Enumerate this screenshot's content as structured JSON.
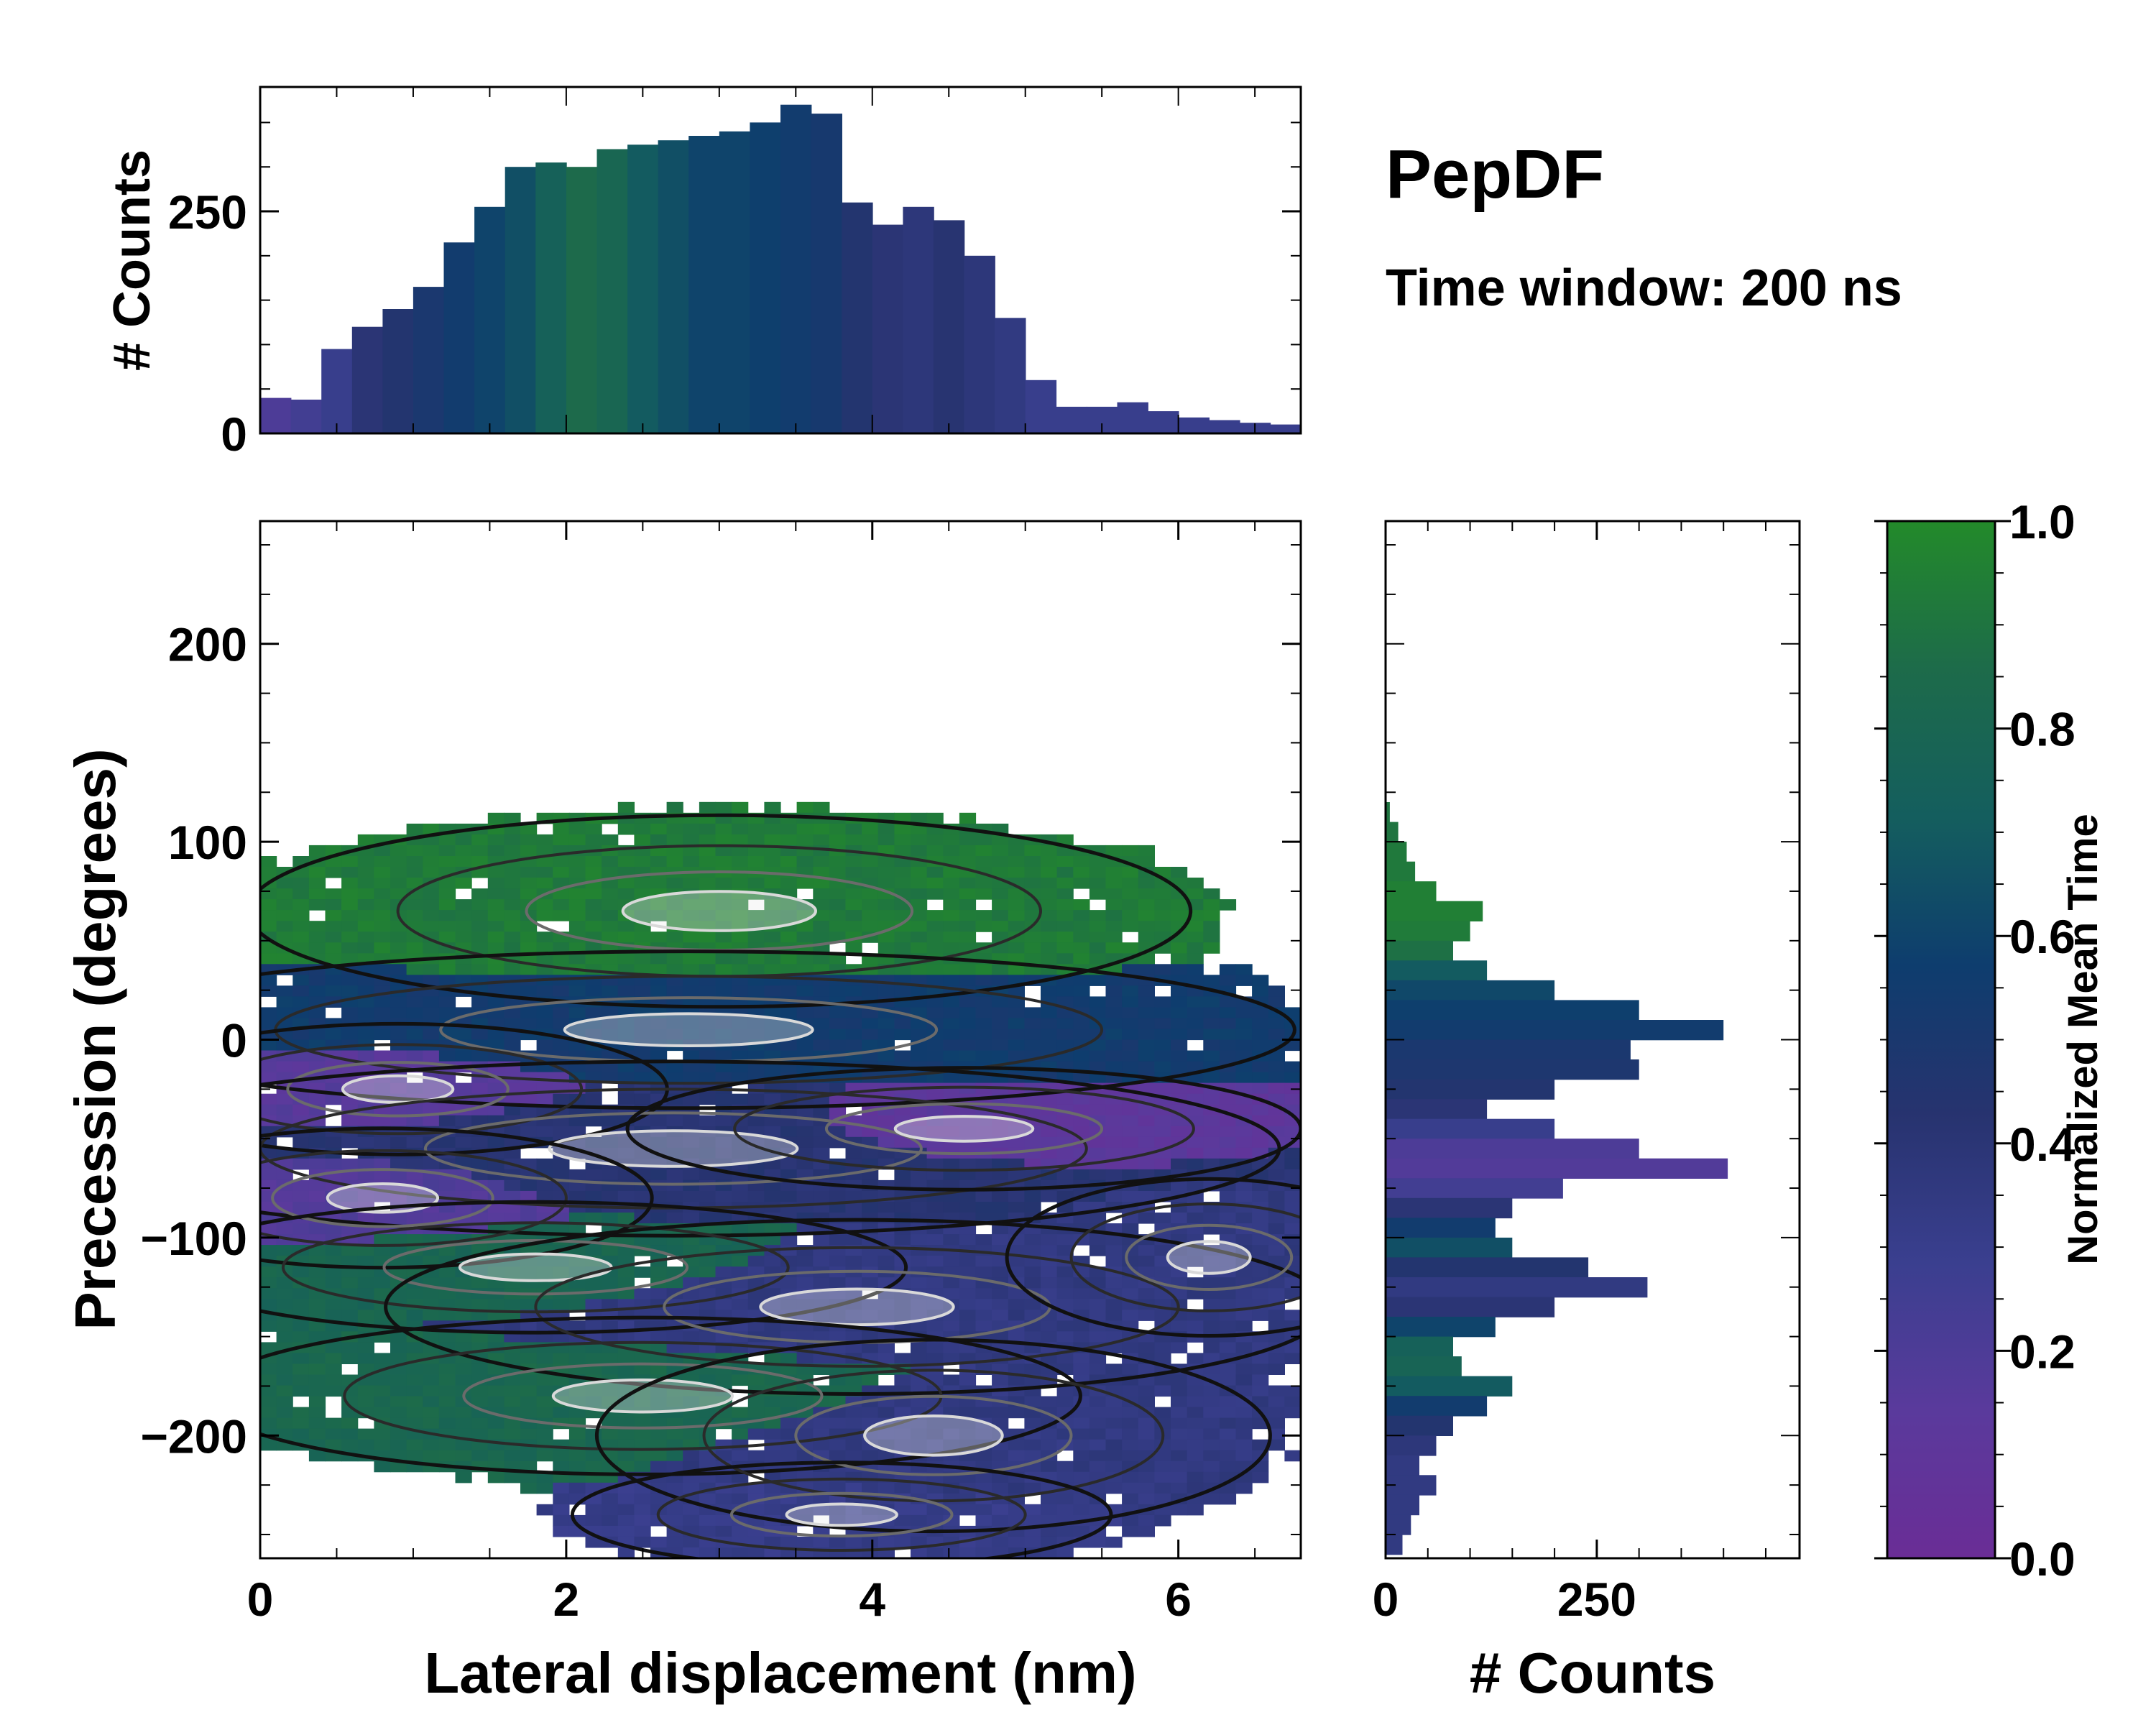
{
  "chart_data": {
    "type": "joint-histogram",
    "title": "PepDF",
    "subtitle": "Time window: 200 ns",
    "colorscale": [
      "#6a2d96",
      "#5a3a9c",
      "#3a3f8f",
      "#27336f",
      "#0e3d6e",
      "#145e5e",
      "#1d6b4a",
      "#238a2a"
    ],
    "main": {
      "xlabel": "Lateral displacement (nm)",
      "ylabel": "Precession (degrees)",
      "xlim": [
        0,
        6.8
      ],
      "ylim": [
        -262,
        262
      ],
      "xticks": [
        0,
        2,
        4,
        6
      ],
      "yticks": [
        200,
        100,
        0,
        -100,
        -200
      ],
      "xtick_labels": [
        "0",
        "2",
        "4",
        "6"
      ],
      "ytick_labels": [
        "200",
        "100",
        "0",
        "−100",
        "−200"
      ],
      "clusters": [
        {
          "name": "upper-green",
          "cx": 3.0,
          "cy": 65,
          "sx": 1.4,
          "sy": 22,
          "time": 0.93
        },
        {
          "name": "upper-blue",
          "cx": 2.8,
          "cy": 5,
          "sx": 1.8,
          "sy": 18,
          "time": 0.55
        },
        {
          "name": "left-purple",
          "cx": 0.9,
          "cy": -25,
          "sx": 0.8,
          "sy": 15,
          "time": 0.15
        },
        {
          "name": "mid-blue",
          "cx": 2.7,
          "cy": -55,
          "sx": 1.8,
          "sy": 20,
          "time": 0.42
        },
        {
          "name": "mid-purple",
          "cx": 4.6,
          "cy": -45,
          "sx": 1.0,
          "sy": 14,
          "time": 0.12
        },
        {
          "name": "left-purple-2",
          "cx": 0.8,
          "cy": -80,
          "sx": 0.8,
          "sy": 16,
          "time": 0.18
        },
        {
          "name": "lower-green",
          "cx": 1.8,
          "cy": -115,
          "sx": 1.1,
          "sy": 15,
          "time": 0.8
        },
        {
          "name": "lower-blue",
          "cx": 3.9,
          "cy": -135,
          "sx": 1.4,
          "sy": 20,
          "time": 0.35
        },
        {
          "name": "right-blue",
          "cx": 6.2,
          "cy": -110,
          "sx": 0.6,
          "sy": 18,
          "time": 0.35
        },
        {
          "name": "bottom-green",
          "cx": 2.5,
          "cy": -180,
          "sx": 1.3,
          "sy": 18,
          "time": 0.82
        },
        {
          "name": "bottom-blue",
          "cx": 4.4,
          "cy": -200,
          "sx": 1.0,
          "sy": 22,
          "time": 0.35
        },
        {
          "name": "bottom-tail",
          "cx": 3.8,
          "cy": -240,
          "sx": 0.8,
          "sy": 12,
          "time": 0.32
        }
      ]
    },
    "top_histogram": {
      "ylabel": "# Counts",
      "ylim": [
        0,
        390
      ],
      "yticks": [
        0,
        250
      ],
      "ytick_labels": [
        "0",
        "250"
      ],
      "x_bins": [
        0.1,
        0.3,
        0.5,
        0.7,
        0.9,
        1.1,
        1.3,
        1.5,
        1.7,
        1.9,
        2.1,
        2.3,
        2.5,
        2.7,
        2.9,
        3.1,
        3.3,
        3.5,
        3.7,
        3.9,
        4.1,
        4.3,
        4.5,
        4.7,
        4.9,
        5.1,
        5.3,
        5.5,
        5.7,
        5.9,
        6.1,
        6.3,
        6.5,
        6.7
      ],
      "counts": [
        40,
        38,
        95,
        120,
        140,
        165,
        215,
        255,
        300,
        305,
        300,
        320,
        325,
        330,
        335,
        340,
        350,
        370,
        360,
        260,
        235,
        255,
        240,
        200,
        130,
        60,
        30,
        30,
        35,
        25,
        18,
        15,
        12,
        10
      ],
      "time": [
        0.2,
        0.25,
        0.3,
        0.4,
        0.45,
        0.5,
        0.55,
        0.6,
        0.65,
        0.75,
        0.85,
        0.8,
        0.7,
        0.65,
        0.6,
        0.6,
        0.58,
        0.55,
        0.52,
        0.45,
        0.4,
        0.38,
        0.42,
        0.38,
        0.35,
        0.3,
        0.3,
        0.3,
        0.3,
        0.3,
        0.3,
        0.3,
        0.3,
        0.3
      ]
    },
    "right_histogram": {
      "xlabel": "# Counts",
      "xlim": [
        0,
        490
      ],
      "xticks": [
        0,
        250
      ],
      "xtick_labels": [
        "0",
        "250"
      ],
      "y_bins": [
        115,
        105,
        95,
        85,
        75,
        65,
        55,
        45,
        35,
        25,
        15,
        5,
        -5,
        -15,
        -25,
        -35,
        -45,
        -55,
        -65,
        -75,
        -85,
        -95,
        -105,
        -115,
        -125,
        -135,
        -145,
        -155,
        -165,
        -175,
        -185,
        -195,
        -205,
        -215,
        -225,
        -235,
        -245,
        -255
      ],
      "counts": [
        5,
        15,
        25,
        35,
        60,
        115,
        100,
        80,
        120,
        200,
        300,
        400,
        290,
        300,
        200,
        120,
        200,
        300,
        405,
        210,
        150,
        130,
        150,
        240,
        310,
        200,
        130,
        80,
        90,
        150,
        120,
        80,
        60,
        40,
        60,
        40,
        30,
        20
      ],
      "time": [
        0.9,
        0.9,
        0.92,
        0.92,
        0.95,
        0.95,
        0.93,
        0.88,
        0.7,
        0.62,
        0.58,
        0.55,
        0.5,
        0.48,
        0.45,
        0.4,
        0.3,
        0.2,
        0.18,
        0.25,
        0.4,
        0.55,
        0.65,
        0.45,
        0.35,
        0.4,
        0.6,
        0.75,
        0.78,
        0.7,
        0.55,
        0.45,
        0.38,
        0.35,
        0.35,
        0.35,
        0.35,
        0.35
      ]
    },
    "colorbar": {
      "label": "Normalized Mean Time",
      "range": [
        0,
        1
      ],
      "ticks": [
        0.0,
        0.2,
        0.4,
        0.6,
        0.8,
        1.0
      ],
      "tick_labels": [
        "0.0",
        "0.2",
        "0.4",
        "0.6",
        "0.8",
        "1.0"
      ]
    }
  }
}
